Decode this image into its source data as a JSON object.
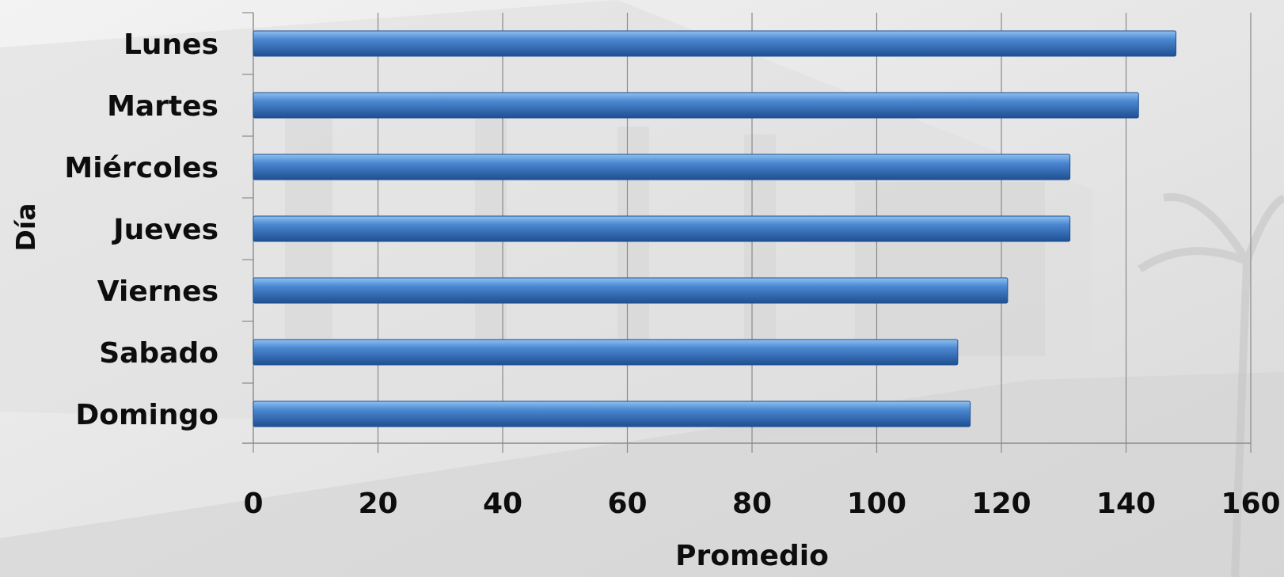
{
  "chart_data": {
    "type": "bar",
    "orientation": "horizontal",
    "categories": [
      "Lunes",
      "Martes",
      "Miércoles",
      "Jueves",
      "Viernes",
      "Sabado",
      "Domingo"
    ],
    "values": [
      148,
      142,
      131,
      131,
      121,
      113,
      115
    ],
    "xlabel": "Promedio",
    "ylabel": "Día",
    "xlim": [
      0,
      160
    ],
    "xticks": [
      "0",
      "20",
      "40",
      "60",
      "80",
      "100",
      "120",
      "140",
      "160"
    ],
    "grid": "vertical",
    "legend": "none",
    "colors": {
      "bar": "#4a86d0",
      "bar_light": "#8ec1f2",
      "bar_dark": "#1f4f91",
      "grid": "#8a8a8a",
      "text": "#0d0d0d"
    }
  }
}
